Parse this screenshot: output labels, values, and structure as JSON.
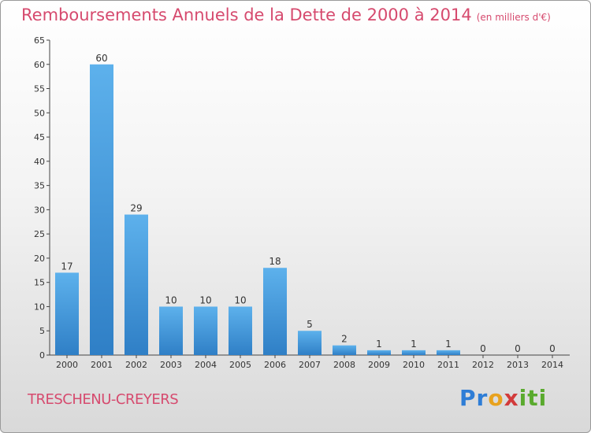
{
  "chart_data": {
    "type": "bar",
    "title": "Remboursements Annuels de la Dette de 2000 à 2014",
    "unit": "(en milliers d'€)",
    "categories": [
      "2000",
      "2001",
      "2002",
      "2003",
      "2004",
      "2005",
      "2006",
      "2007",
      "2008",
      "2009",
      "2010",
      "2011",
      "2012",
      "2013",
      "2014"
    ],
    "values": [
      17,
      60,
      29,
      10,
      10,
      10,
      18,
      5,
      2,
      1,
      1,
      1,
      0,
      0,
      0
    ],
    "ylim": [
      0,
      65
    ],
    "yticks": [
      0,
      5,
      10,
      15,
      20,
      25,
      30,
      35,
      40,
      45,
      50,
      55,
      60,
      65
    ],
    "grid": false,
    "bar_color": "#4a9ee0"
  },
  "footer": {
    "place": "TRESCHENU-CREYERS",
    "logo_parts": [
      "Pr",
      "o",
      "x",
      "iti"
    ]
  }
}
